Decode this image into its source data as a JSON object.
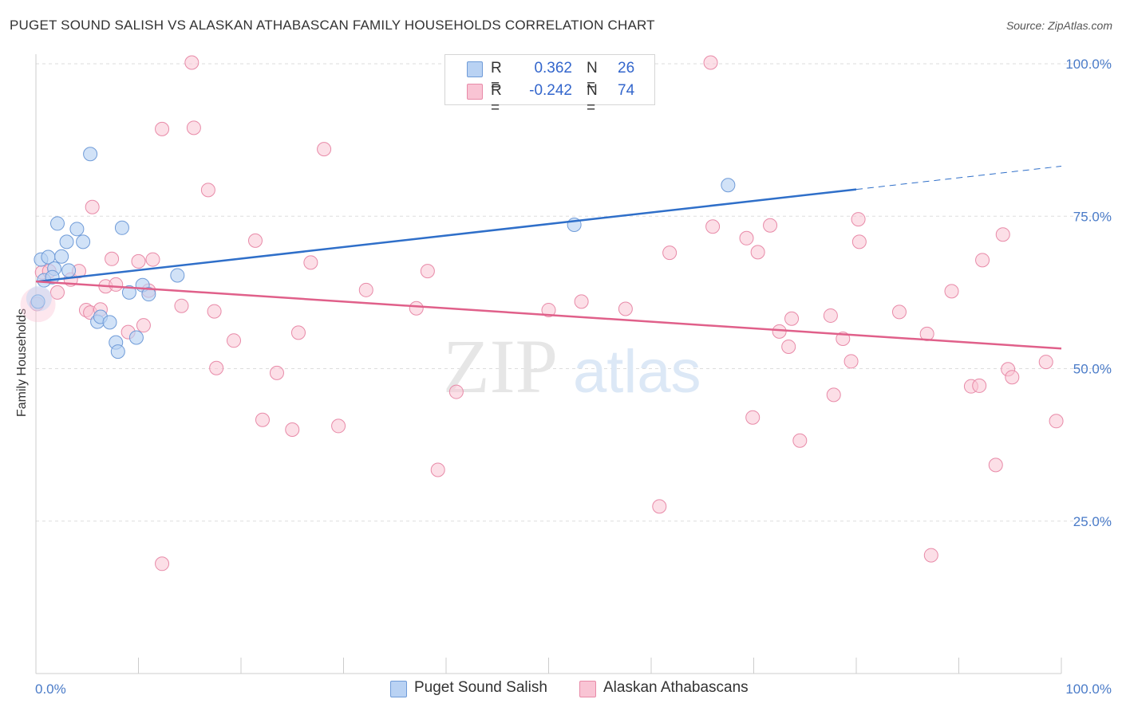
{
  "header": {
    "title": "PUGET SOUND SALISH VS ALASKAN ATHABASCAN FAMILY HOUSEHOLDS CORRELATION CHART",
    "source": "Source: ZipAtlas.com"
  },
  "watermark": {
    "zip": "ZIP",
    "atlas": "atlas"
  },
  "stats": [
    {
      "r_label": "R =",
      "r_value": "0.362",
      "n_label": "N =",
      "n_value": "26"
    },
    {
      "r_label": "R =",
      "r_value": "-0.242",
      "n_label": "N =",
      "n_value": "74"
    }
  ],
  "colors": {
    "blue_fill": "#b9d2f3",
    "blue_stroke": "#6f9bd8",
    "blue_line": "#2f6fc9",
    "pink_fill": "#f9c4d4",
    "pink_stroke": "#e88aa8",
    "pink_line": "#e0608a",
    "grid": "#dddddd",
    "axis_label": "#4a7bc8"
  },
  "chart_data": {
    "type": "scatter",
    "title": "PUGET SOUND SALISH VS ALASKAN ATHABASCAN FAMILY HOUSEHOLDS CORRELATION CHART",
    "xlabel": "",
    "ylabel": "Family Households",
    "xlim": [
      0,
      100
    ],
    "ylim": [
      0,
      100
    ],
    "x_tick_labels": [
      "0.0%",
      "100.0%"
    ],
    "y_ticks": [
      {
        "value": 25,
        "label": "25.0%"
      },
      {
        "value": 50,
        "label": "50.0%"
      },
      {
        "value": 75,
        "label": "75.0%"
      },
      {
        "value": 100,
        "label": "100.0%"
      }
    ],
    "grid": true,
    "legend_position": "bottom-center",
    "series": [
      {
        "name": "Puget Sound Salish",
        "color": "#b9d2f3",
        "points": [
          [
            0.2,
            61
          ],
          [
            0.5,
            67.9
          ],
          [
            0.8,
            64.5
          ],
          [
            1.2,
            68.3
          ],
          [
            1.8,
            66.4
          ],
          [
            2.1,
            73.8
          ],
          [
            2.5,
            68.4
          ],
          [
            3.0,
            70.8
          ],
          [
            3.2,
            66.1
          ],
          [
            4.0,
            72.9
          ],
          [
            4.6,
            70.8
          ],
          [
            5.3,
            85.2
          ],
          [
            6.0,
            57.7
          ],
          [
            6.3,
            58.5
          ],
          [
            7.2,
            57.6
          ],
          [
            7.8,
            54.3
          ],
          [
            8.0,
            52.8
          ],
          [
            8.4,
            73.1
          ],
          [
            9.1,
            62.5
          ],
          [
            9.8,
            55.1
          ],
          [
            10.4,
            63.7
          ],
          [
            11.0,
            62.2
          ],
          [
            13.8,
            65.3
          ],
          [
            52.5,
            73.6
          ],
          [
            67.5,
            80.1
          ],
          [
            1.6,
            65.0
          ]
        ],
        "trend": {
          "x": [
            0.2,
            80
          ],
          "y": [
            64.3,
            79.4
          ],
          "dashed_extension": {
            "x": [
              80,
              100
            ],
            "y": [
              79.4,
              83.2
            ]
          }
        }
      },
      {
        "name": "Alaskan Athabascans",
        "color": "#f9c4d4",
        "points": [
          [
            0.1,
            60.6
          ],
          [
            0.6,
            65.8
          ],
          [
            1.3,
            66.0
          ],
          [
            2.1,
            62.5
          ],
          [
            3.4,
            64.6
          ],
          [
            4.2,
            66.0
          ],
          [
            4.9,
            59.6
          ],
          [
            5.3,
            59.2
          ],
          [
            5.5,
            76.5
          ],
          [
            6.3,
            59.7
          ],
          [
            6.8,
            63.5
          ],
          [
            7.4,
            68.0
          ],
          [
            7.8,
            63.8
          ],
          [
            9.0,
            56.0
          ],
          [
            10.0,
            67.6
          ],
          [
            10.5,
            57.1
          ],
          [
            11.0,
            62.8
          ],
          [
            11.4,
            67.9
          ],
          [
            12.3,
            89.3
          ],
          [
            12.3,
            18.0
          ],
          [
            14.2,
            60.3
          ],
          [
            15.2,
            100.2
          ],
          [
            15.4,
            89.5
          ],
          [
            16.8,
            79.3
          ],
          [
            17.4,
            59.4
          ],
          [
            17.6,
            50.1
          ],
          [
            19.3,
            54.6
          ],
          [
            21.4,
            71.0
          ],
          [
            22.1,
            41.6
          ],
          [
            23.5,
            49.3
          ],
          [
            25.0,
            40.0
          ],
          [
            25.6,
            55.9
          ],
          [
            26.8,
            67.4
          ],
          [
            28.1,
            86.0
          ],
          [
            29.5,
            40.6
          ],
          [
            32.2,
            62.9
          ],
          [
            37.1,
            59.9
          ],
          [
            38.2,
            66.0
          ],
          [
            39.2,
            33.4
          ],
          [
            41.0,
            46.2
          ],
          [
            50.0,
            59.6
          ],
          [
            53.2,
            61.0
          ],
          [
            57.5,
            59.8
          ],
          [
            60.8,
            27.4
          ],
          [
            61.8,
            69.0
          ],
          [
            65.8,
            100.2
          ],
          [
            66.0,
            73.3
          ],
          [
            69.3,
            71.4
          ],
          [
            69.9,
            42.0
          ],
          [
            70.4,
            69.1
          ],
          [
            71.6,
            73.5
          ],
          [
            72.5,
            56.1
          ],
          [
            73.4,
            53.6
          ],
          [
            73.7,
            58.2
          ],
          [
            74.5,
            38.2
          ],
          [
            77.5,
            58.7
          ],
          [
            77.8,
            45.7
          ],
          [
            78.7,
            54.9
          ],
          [
            79.5,
            51.2
          ],
          [
            80.2,
            74.5
          ],
          [
            80.3,
            70.8
          ],
          [
            84.2,
            59.3
          ],
          [
            86.9,
            55.7
          ],
          [
            87.3,
            19.4
          ],
          [
            89.3,
            62.7
          ],
          [
            91.2,
            47.1
          ],
          [
            92.0,
            47.2
          ],
          [
            92.3,
            67.8
          ],
          [
            93.6,
            34.2
          ],
          [
            94.3,
            72.0
          ],
          [
            94.8,
            49.9
          ],
          [
            95.2,
            48.6
          ],
          [
            98.5,
            51.1
          ],
          [
            99.5,
            41.4
          ]
        ],
        "trend": {
          "x": [
            0,
            100
          ],
          "y": [
            64.3,
            53.3
          ]
        }
      }
    ]
  },
  "legend": [
    {
      "label": "Puget Sound Salish"
    },
    {
      "label": "Alaskan Athabascans"
    }
  ]
}
